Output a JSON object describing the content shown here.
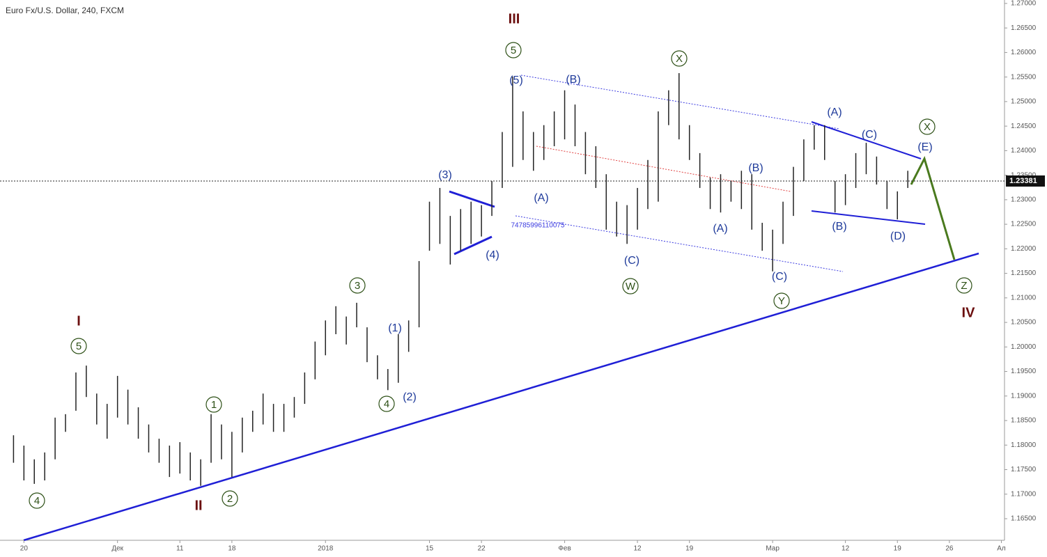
{
  "chart_data": {
    "type": "hilo",
    "title": "Euro Fx/U.S. Dollar, 240, FXCM",
    "color": "#222222",
    "x": [
      -1,
      0,
      1,
      2,
      3,
      4,
      5,
      6,
      7,
      8,
      9,
      10,
      11,
      12,
      13,
      14,
      15,
      16,
      17,
      18,
      19,
      20,
      21,
      22,
      23,
      24,
      25,
      26,
      27,
      28,
      29,
      30,
      31,
      32,
      33,
      34,
      35,
      36,
      37,
      38,
      39,
      40,
      41,
      42,
      43,
      44,
      45,
      46,
      47,
      48,
      49,
      50,
      51,
      52,
      53,
      54,
      55,
      56,
      57,
      58,
      59,
      60,
      61,
      62,
      63,
      64,
      65,
      66,
      67,
      68,
      69,
      70,
      71,
      72,
      73,
      74,
      75,
      76,
      77,
      78,
      79,
      80,
      81,
      82,
      83,
      84,
      85
    ],
    "high": [
      1.182,
      1.1799,
      1.1771,
      1.1785,
      1.1856,
      1.1863,
      1.1948,
      1.1962,
      1.1905,
      1.1884,
      1.1941,
      1.1913,
      1.1877,
      1.1842,
      1.1813,
      1.1799,
      1.1806,
      1.1785,
      1.1771,
      1.1863,
      1.1842,
      1.1827,
      1.1856,
      1.187,
      1.1905,
      1.1884,
      1.1884,
      1.1898,
      1.1948,
      1.2011,
      1.2054,
      1.2083,
      1.2062,
      1.209,
      1.204,
      1.1983,
      1.1955,
      1.2026,
      1.2054,
      1.2175,
      1.2296,
      1.2324,
      1.2267,
      1.2281,
      1.2296,
      1.2289,
      1.2338,
      1.2438,
      1.2551,
      1.248,
      1.2438,
      1.2452,
      1.248,
      1.2523,
      1.2494,
      1.2438,
      1.2409,
      1.2352,
      1.2296,
      1.2289,
      1.2324,
      1.2381,
      1.248,
      1.2523,
      1.2558,
      1.2452,
      1.2395,
      1.2345,
      1.2352,
      1.2338,
      1.2359,
      1.2352,
      1.2253,
      1.2239,
      1.2296,
      1.2367,
      1.2423,
      1.2452,
      1.2452,
      1.2338,
      1.2352,
      1.2395,
      1.2416,
      1.2388,
      1.2338,
      1.2317,
      1.2359
    ],
    "low": [
      1.1764,
      1.1728,
      1.1721,
      1.1728,
      1.1771,
      1.1827,
      1.187,
      1.1898,
      1.1842,
      1.1813,
      1.1856,
      1.1842,
      1.1813,
      1.1785,
      1.1764,
      1.1735,
      1.1742,
      1.1728,
      1.1717,
      1.1764,
      1.1771,
      1.1735,
      1.1785,
      1.1827,
      1.1842,
      1.1827,
      1.1827,
      1.1856,
      1.1884,
      1.1934,
      1.1983,
      1.2026,
      1.2005,
      1.204,
      1.1969,
      1.1934,
      1.1912,
      1.1927,
      1.199,
      1.204,
      1.2196,
      1.221,
      1.2168,
      1.2196,
      1.221,
      1.2225,
      1.2267,
      1.2324,
      1.2367,
      1.2381,
      1.2359,
      1.2381,
      1.2409,
      1.2423,
      1.2409,
      1.2352,
      1.2324,
      1.2239,
      1.2225,
      1.221,
      1.2239,
      1.2281,
      1.2296,
      1.2452,
      1.2423,
      1.2381,
      1.2324,
      1.2281,
      1.2274,
      1.2296,
      1.2281,
      1.2239,
      1.2196,
      1.2154,
      1.221,
      1.2267,
      1.2338,
      1.2402,
      1.2381,
      1.2274,
      1.2289,
      1.2324,
      1.2352,
      1.2331,
      1.2281,
      1.226,
      1.2324
    ],
    "last_price": 1.23381,
    "xlim": [
      -2.3,
      94.3
    ],
    "xticks": [
      {
        "value": 0,
        "label": "20"
      },
      {
        "value": 9,
        "label": "Дек"
      },
      {
        "value": 15,
        "label": "11"
      },
      {
        "value": 20,
        "label": "18"
      },
      {
        "value": 29,
        "label": "2018"
      },
      {
        "value": 39,
        "label": "15"
      },
      {
        "value": 44,
        "label": "22"
      },
      {
        "value": 52,
        "label": "Фев"
      },
      {
        "value": 59,
        "label": "12"
      },
      {
        "value": 64,
        "label": "19"
      },
      {
        "value": 72,
        "label": "Мар"
      },
      {
        "value": 79,
        "label": "12"
      },
      {
        "value": 84,
        "label": "19"
      },
      {
        "value": 89,
        "label": "26"
      },
      {
        "value": 94,
        "label": "Ал"
      }
    ],
    "ylim": [
      1.1606,
      1.2707
    ],
    "yticks": [
      {
        "value": 1.165,
        "label": "1.16500"
      },
      {
        "value": 1.17,
        "label": "1.17000"
      },
      {
        "value": 1.175,
        "label": "1.17500"
      },
      {
        "value": 1.18,
        "label": "1.18000"
      },
      {
        "value": 1.185,
        "label": "1.18500"
      },
      {
        "value": 1.19,
        "label": "1.19000"
      },
      {
        "value": 1.195,
        "label": "1.19500"
      },
      {
        "value": 1.2,
        "label": "1.20000"
      },
      {
        "value": 1.205,
        "label": "1.20500"
      },
      {
        "value": 1.21,
        "label": "1.21000"
      },
      {
        "value": 1.215,
        "label": "1.21500"
      },
      {
        "value": 1.22,
        "label": "1.22000"
      },
      {
        "value": 1.225,
        "label": "1.22500"
      },
      {
        "value": 1.23,
        "label": "1.23000"
      },
      {
        "value": 1.235,
        "label": "1.23500"
      },
      {
        "value": 1.24,
        "label": "1.24000"
      },
      {
        "value": 1.245,
        "label": "1.24500"
      },
      {
        "value": 1.25,
        "label": "1.25000"
      },
      {
        "value": 1.255,
        "label": "1.25500"
      },
      {
        "value": 1.26,
        "label": "1.26000"
      },
      {
        "value": 1.265,
        "label": "1.26500"
      },
      {
        "value": 1.27,
        "label": "1.27000"
      }
    ],
    "grid": false,
    "annotations": [
      "III",
      "I",
      "II",
      "IV",
      "5",
      "3",
      "5",
      "1",
      "2",
      "4",
      "4",
      "X",
      "W",
      "Y",
      "X",
      "Z",
      "(5)",
      "(B)",
      "(A)",
      "(C)",
      "(A)",
      "(B)",
      "(C)",
      "(A)",
      "(C)",
      "(E)",
      "(B)",
      "(D)",
      "(3)",
      "(4)",
      "(1)",
      "(2)",
      "74785996110075"
    ]
  }
}
